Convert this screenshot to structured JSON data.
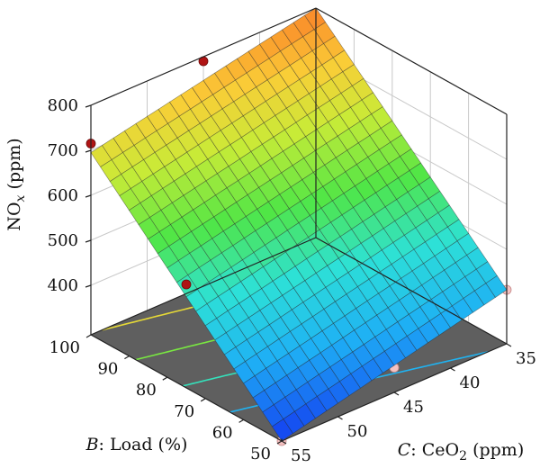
{
  "chart_data": {
    "type": "surface3d",
    "z_axis": {
      "label_main": "NO",
      "label_sub": "x",
      "label_unit": " (ppm)",
      "ticks": [
        400,
        500,
        600,
        700,
        800
      ],
      "range": [
        290,
        800
      ]
    },
    "x_axis": {
      "label_var": "B",
      "label_rest": ": Load (%)",
      "ticks": [
        50,
        60,
        70,
        80,
        90,
        100
      ],
      "range": [
        50,
        100
      ]
    },
    "y_axis": {
      "label_var": "C",
      "label_rest": ": CeO",
      "label_sub": "2",
      "label_unit": " (ppm)",
      "ticks": [
        35,
        40,
        45,
        50,
        55
      ],
      "range": [
        35,
        55
      ]
    },
    "surface": {
      "corners": [
        {
          "load": 50,
          "ceo2": 55,
          "nox": 290
        },
        {
          "load": 50,
          "ceo2": 35,
          "nox": 410
        },
        {
          "load": 100,
          "ceo2": 55,
          "nox": 695
        },
        {
          "load": 100,
          "ceo2": 35,
          "nox": 800
        }
      ],
      "grid_divisions": 20,
      "floor_contour_levels": [
        400,
        500,
        600,
        700
      ],
      "colormap": "blue-cyan-green-yellow-orange"
    },
    "points": [
      {
        "load": 100,
        "ceo2": 55,
        "nox": 715,
        "above": true
      },
      {
        "load": 100,
        "ceo2": 45,
        "nox": 790,
        "above": true
      },
      {
        "load": 100,
        "ceo2": 35,
        "nox": 840,
        "above": true
      },
      {
        "load": 75,
        "ceo2": 55,
        "nox": 520,
        "above": true
      },
      {
        "load": 50,
        "ceo2": 55,
        "nox": 290,
        "above": false
      },
      {
        "load": 50,
        "ceo2": 45,
        "nox": 345,
        "above": false
      },
      {
        "load": 50,
        "ceo2": 35,
        "nox": 410,
        "above": false
      }
    ],
    "colors": {
      "floor": "#5f5f5f",
      "grid": "#c8c8c8",
      "frame": "#222222",
      "point_above": "#b01414",
      "point_below": "#f4c2c2"
    }
  }
}
